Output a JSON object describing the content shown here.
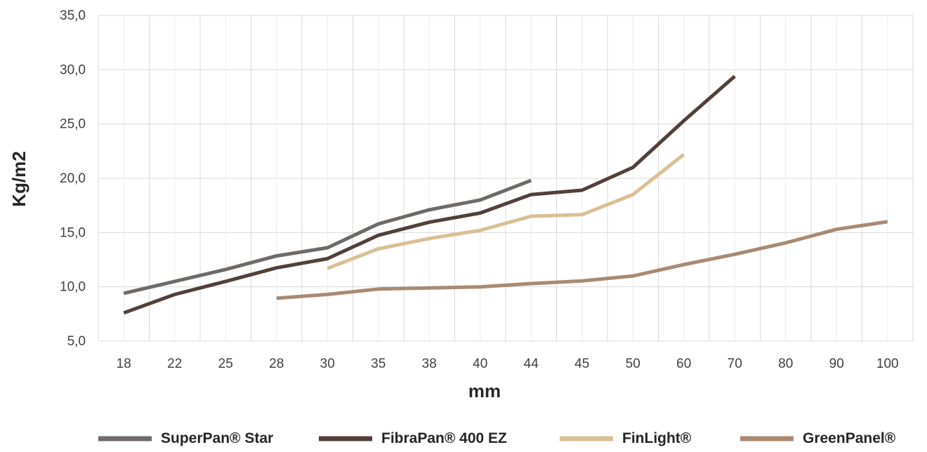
{
  "chart_data": {
    "type": "line",
    "title": "",
    "xlabel": "mm",
    "ylabel": "Kg/m2",
    "categories": [
      "18",
      "22",
      "25",
      "28",
      "30",
      "35",
      "38",
      "40",
      "44",
      "45",
      "50",
      "60",
      "70",
      "80",
      "90",
      "100"
    ],
    "ylim": [
      5,
      35
    ],
    "yticks": [
      "5,0",
      "10,0",
      "15,0",
      "20,0",
      "25,0",
      "30,0",
      "35,0"
    ],
    "grid": "both",
    "legend_position": "bottom",
    "series": [
      {
        "name": "SuperPan® Star",
        "color": "#6d6a67",
        "values": [
          9.4,
          10.5,
          11.6,
          12.85,
          13.6,
          15.8,
          17.1,
          18.0,
          19.8,
          null,
          null,
          null,
          null,
          null,
          null,
          null
        ]
      },
      {
        "name": "FibraPan® 400 EZ",
        "color": "#514039",
        "values": [
          7.6,
          9.3,
          10.5,
          11.75,
          12.6,
          14.75,
          15.95,
          16.8,
          18.5,
          18.9,
          21.0,
          25.3,
          29.4,
          null,
          null,
          null
        ]
      },
      {
        "name": "FinLight®",
        "color": "#d9bf94",
        "values": [
          null,
          null,
          null,
          null,
          11.7,
          13.5,
          14.45,
          15.2,
          16.5,
          16.65,
          18.5,
          22.2,
          null,
          null,
          null,
          null
        ]
      },
      {
        "name": "GreenPanel®",
        "color": "#a88a72",
        "values": [
          null,
          null,
          null,
          8.95,
          9.3,
          9.8,
          9.9,
          10.0,
          10.3,
          10.55,
          11.0,
          12.05,
          13.0,
          14.05,
          15.3,
          16.0
        ]
      }
    ]
  }
}
